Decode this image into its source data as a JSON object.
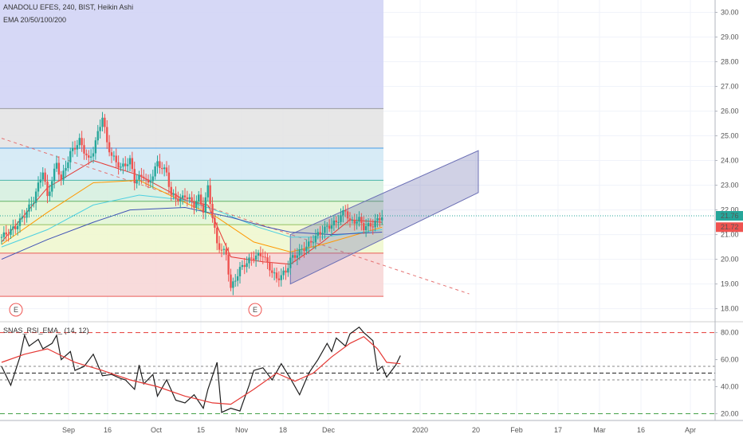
{
  "header": {
    "symbol_line": "ANADOLU EFES, 240, BIST, Heikin Ashi",
    "ema_line": "EMA 20/50/100/200",
    "rsi_line": "SNAS_RSI_EMA_ (14, 12)",
    "event_marker": "E"
  },
  "chart_data": [
    {
      "type": "candlestick",
      "title": "ANADOLU EFES, 240, BIST, Heikin Ashi",
      "x_ticks": [
        "Sep",
        "16",
        "Oct",
        "15",
        "Nov",
        "18",
        "Dec",
        "2020",
        "20",
        "Feb",
        "17",
        "Mar",
        "16",
        "Apr"
      ],
      "ylim": [
        17.6,
        30.5
      ],
      "y_ticks": [
        "30.00",
        "29.00",
        "28.00",
        "27.00",
        "26.00",
        "25.00",
        "24.00",
        "23.00",
        "22.00",
        "21.00",
        "20.00",
        "19.00",
        "18.00"
      ],
      "price_labels": [
        {
          "value": "21.76",
          "color": "#26a69a"
        },
        {
          "value": "21.72",
          "color": "#ef5350"
        }
      ],
      "close_path": [
        [
          0,
          20.9
        ],
        [
          3,
          21.3
        ],
        [
          5,
          21.8
        ],
        [
          7,
          22.4
        ],
        [
          9,
          23.6
        ],
        [
          10,
          22.5
        ],
        [
          12,
          23.9
        ],
        [
          13,
          23.2
        ],
        [
          15,
          24.3
        ],
        [
          17,
          24.8
        ],
        [
          19,
          24.0
        ],
        [
          20,
          24.4
        ],
        [
          22,
          25.8
        ],
        [
          23,
          24.7
        ],
        [
          24,
          24.2
        ],
        [
          26,
          23.7
        ],
        [
          28,
          24.0
        ],
        [
          29,
          23.2
        ],
        [
          31,
          23.4
        ],
        [
          32,
          23.0
        ],
        [
          34,
          23.9
        ],
        [
          36,
          23.5
        ],
        [
          37,
          22.6
        ],
        [
          39,
          22.4
        ],
        [
          40,
          22.6
        ],
        [
          42,
          22.2
        ],
        [
          43,
          22.5
        ],
        [
          44,
          22.0
        ],
        [
          45,
          22.9
        ],
        [
          47,
          20.6
        ],
        [
          49,
          20.2
        ],
        [
          50,
          18.8
        ],
        [
          52,
          19.6
        ],
        [
          53,
          19.8
        ],
        [
          55,
          20.1
        ],
        [
          57,
          20.2
        ],
        [
          58,
          19.8
        ],
        [
          60,
          19.2
        ],
        [
          62,
          19.5
        ],
        [
          63,
          20.0
        ],
        [
          65,
          20.3
        ],
        [
          67,
          20.6
        ],
        [
          69,
          21.0
        ],
        [
          71,
          21.3
        ],
        [
          73,
          21.5
        ],
        [
          75,
          22.0
        ],
        [
          76,
          21.5
        ],
        [
          78,
          21.6
        ],
        [
          79,
          21.3
        ],
        [
          81,
          21.4
        ],
        [
          83,
          21.76
        ]
      ],
      "ema_lines": [
        {
          "name": "EMA 20",
          "color": "#e53935",
          "values": [
            [
              0,
              20.7
            ],
            [
              10,
              22.9
            ],
            [
              20,
              24.0
            ],
            [
              30,
              23.4
            ],
            [
              40,
              22.4
            ],
            [
              45,
              22.2
            ],
            [
              50,
              20.1
            ],
            [
              57,
              19.9
            ],
            [
              63,
              19.8
            ],
            [
              70,
              20.7
            ],
            [
              76,
              21.6
            ],
            [
              83,
              21.5
            ]
          ]
        },
        {
          "name": "EMA 50",
          "color": "#ff9800",
          "values": [
            [
              0,
              20.6
            ],
            [
              10,
              21.9
            ],
            [
              20,
              23.1
            ],
            [
              30,
              23.2
            ],
            [
              40,
              22.3
            ],
            [
              47,
              21.7
            ],
            [
              55,
              20.7
            ],
            [
              63,
              20.3
            ],
            [
              70,
              20.6
            ],
            [
              83,
              21.3
            ]
          ]
        },
        {
          "name": "EMA 100",
          "color": "#4dd0e1",
          "values": [
            [
              0,
              20.5
            ],
            [
              10,
              21.2
            ],
            [
              20,
              22.2
            ],
            [
              30,
              22.6
            ],
            [
              40,
              22.4
            ],
            [
              48,
              21.9
            ],
            [
              56,
              21.3
            ],
            [
              63,
              20.9
            ],
            [
              70,
              20.9
            ],
            [
              83,
              21.2
            ]
          ]
        },
        {
          "name": "EMA 200",
          "color": "#3f51b5",
          "values": [
            [
              0,
              20.0
            ],
            [
              10,
              20.8
            ],
            [
              20,
              21.5
            ],
            [
              28,
              22.0
            ],
            [
              40,
              22.1
            ],
            [
              50,
              21.7
            ],
            [
              58,
              21.3
            ],
            [
              63,
              21.1
            ],
            [
              72,
              21.0
            ],
            [
              83,
              21.1
            ]
          ]
        }
      ],
      "fib_levels": [
        30.6,
        26.1,
        24.5,
        23.2,
        22.35,
        21.4,
        20.25,
        18.5
      ],
      "fib_zone_colors": [
        "#d1d4f5",
        "#e4e4e4",
        "#d3e9f5",
        "#d6f0e0",
        "#e2f5d6",
        "#f0f7cf",
        "#f7d7d7"
      ],
      "channel": {
        "lower_start": [
          63,
          19.0
        ],
        "lower_end": [
          104,
          22.7
        ],
        "upper_start": [
          63,
          21.0
        ],
        "upper_end": [
          104,
          24.4
        ]
      },
      "trend_line": {
        "start": [
          0,
          24.9
        ],
        "end": [
          102,
          18.6
        ]
      }
    },
    {
      "type": "line",
      "title": "SNAS_RSI_EMA_ (14, 12)",
      "ylim": [
        15,
        88
      ],
      "y_ticks": [
        "80.00",
        "60.00",
        "40.00",
        "20.00"
      ],
      "series": [
        {
          "color": "#1e1e1e",
          "values": [
            [
              0,
              55
            ],
            [
              2,
              41
            ],
            [
              4,
              62
            ],
            [
              5,
              78
            ],
            [
              6,
              70
            ],
            [
              8,
              75
            ],
            [
              9,
              68
            ],
            [
              11,
              72
            ],
            [
              12,
              78
            ],
            [
              13,
              60
            ],
            [
              15,
              66
            ],
            [
              16,
              52
            ],
            [
              18,
              55
            ],
            [
              20,
              64
            ],
            [
              22,
              48
            ],
            [
              24,
              49
            ],
            [
              26,
              46
            ],
            [
              27,
              45
            ],
            [
              29,
              38
            ],
            [
              30,
              56
            ],
            [
              31,
              42
            ],
            [
              33,
              49
            ],
            [
              34,
              33
            ],
            [
              36,
              45
            ],
            [
              38,
              30
            ],
            [
              40,
              28
            ],
            [
              42,
              34
            ],
            [
              44,
              24
            ],
            [
              45,
              38
            ],
            [
              47,
              58
            ],
            [
              48,
              21
            ],
            [
              50,
              24
            ],
            [
              52,
              22
            ],
            [
              54,
              41
            ],
            [
              55,
              52
            ],
            [
              57,
              54
            ],
            [
              59,
              45
            ],
            [
              61,
              57
            ],
            [
              63,
              46
            ],
            [
              65,
              34
            ],
            [
              67,
              50
            ],
            [
              69,
              60
            ],
            [
              71,
              72
            ],
            [
              72,
              66
            ],
            [
              73,
              76
            ],
            [
              75,
              70
            ],
            [
              76,
              79
            ],
            [
              78,
              84
            ],
            [
              79,
              80
            ],
            [
              81,
              74
            ],
            [
              82,
              52
            ],
            [
              83,
              55
            ],
            [
              84,
              47
            ],
            [
              86,
              56
            ],
            [
              87,
              63
            ]
          ]
        },
        {
          "color": "#e53935",
          "values": [
            [
              0,
              58
            ],
            [
              5,
              64
            ],
            [
              10,
              68
            ],
            [
              16,
              58
            ],
            [
              22,
              52
            ],
            [
              28,
              45
            ],
            [
              34,
              40
            ],
            [
              40,
              33
            ],
            [
              46,
              28
            ],
            [
              50,
              27
            ],
            [
              55,
              38
            ],
            [
              60,
              50
            ],
            [
              64,
              44
            ],
            [
              68,
              50
            ],
            [
              72,
              62
            ],
            [
              76,
              72
            ],
            [
              79,
              77
            ],
            [
              82,
              68
            ],
            [
              84,
              58
            ],
            [
              87,
              57
            ]
          ]
        }
      ],
      "levels": [
        {
          "value": 80,
          "color": "#e53935",
          "dash": "6,4"
        },
        {
          "value": 55,
          "color": "#888888",
          "dash": "3,3"
        },
        {
          "value": 50,
          "color": "#222222",
          "dash": "5,3"
        },
        {
          "value": 45,
          "color": "#888888",
          "dash": "3,3"
        },
        {
          "value": 20,
          "color": "#43a047",
          "dash": "6,4"
        }
      ]
    }
  ]
}
